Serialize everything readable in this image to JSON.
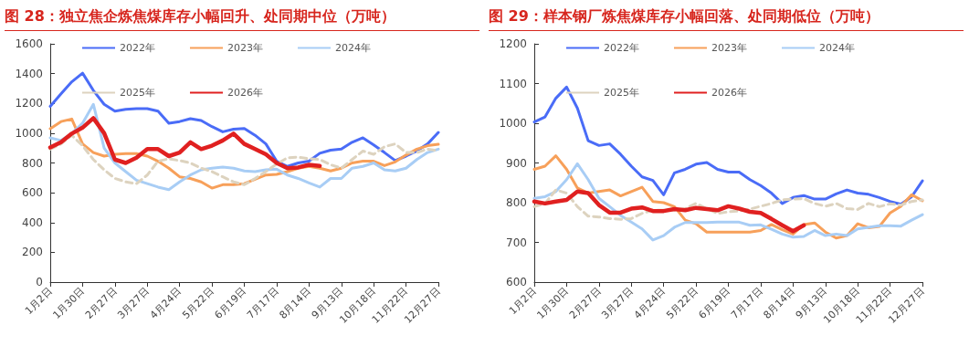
{
  "chart_data": [
    {
      "type": "line",
      "title": "图 28：独立焦企炼焦煤库存小幅回升、处同期中位（万吨）",
      "categories": [
        "1月2日",
        null,
        null,
        "1月30日",
        null,
        null,
        "2月27日",
        null,
        null,
        "3月27日",
        null,
        null,
        "4月24日",
        null,
        null,
        "5月22日",
        null,
        null,
        "6月19日",
        null,
        null,
        "7月17日",
        null,
        null,
        "8月14日",
        null,
        null,
        "9月13日",
        null,
        null,
        "10月18日",
        null,
        null,
        "11月22日",
        null,
        null,
        "12月27日"
      ],
      "ylim": [
        0,
        1600
      ],
      "yticks": [
        0,
        200,
        400,
        600,
        800,
        1000,
        1200,
        1400,
        1600
      ],
      "grid": false,
      "legend": "top",
      "marker": "none",
      "series": [
        {
          "name": "2022年",
          "color": "#4a6cf7",
          "values": [
            1180,
            1264,
            1345,
            1403,
            1287,
            1194,
            1148,
            1160,
            1164,
            1165,
            1148,
            1067,
            1078,
            1097,
            1085,
            1044,
            1009,
            1027,
            1032,
            986,
            928,
            812,
            777,
            800,
            812,
            865,
            886,
            893,
            939,
            969,
            921,
            870,
            816,
            846,
            881,
            928,
            1005
          ]
        },
        {
          "name": "2023年",
          "color": "#f7a05a",
          "values": [
            1030,
            1078,
            1095,
            928,
            870,
            846,
            858,
            863,
            863,
            846,
            812,
            765,
            707,
            696,
            673,
            631,
            654,
            654,
            661,
            691,
            719,
            723,
            742,
            765,
            777,
            765,
            746,
            765,
            800,
            812,
            812,
            782,
            807,
            853,
            893,
            916,
            925
          ]
        },
        {
          "name": "2024年",
          "color": "#a8cdf5",
          "values": [
            969,
            951,
            997,
            1067,
            1194,
            900,
            800,
            742,
            684,
            661,
            638,
            621,
            673,
            719,
            754,
            765,
            772,
            765,
            746,
            742,
            754,
            758,
            719,
            696,
            666,
            638,
            696,
            696,
            765,
            777,
            800,
            754,
            746,
            765,
            823,
            870,
            893
          ]
        },
        {
          "name": "2025年",
          "color": "#ddd3bf",
          "line_style": "dashed",
          "values": [
            893,
            928,
            986,
            916,
            823,
            754,
            696,
            673,
            661,
            719,
            812,
            828,
            816,
            800,
            765,
            742,
            707,
            673,
            654,
            696,
            742,
            793,
            835,
            839,
            828,
            823,
            788,
            765,
            823,
            880,
            858,
            909,
            928,
            870,
            870,
            893,
            881
          ]
        },
        {
          "name": "2026年",
          "color": "#e02020",
          "values": [
            904,
            939,
            997,
            1037,
            1101,
            1000,
            823,
            800,
            835,
            893,
            893,
            846,
            870,
            939,
            893,
            916,
            951,
            997,
            928,
            893,
            858,
            800,
            765,
            770,
            788,
            780,
            null,
            null,
            null,
            null,
            null,
            null,
            null,
            null,
            null,
            null,
            null
          ]
        }
      ]
    },
    {
      "type": "line",
      "title": "图 29：样本钢厂炼焦煤库存小幅回落、处同期低位（万吨）",
      "categories": [
        "1月2日",
        null,
        null,
        "1月30日",
        null,
        null,
        "2月27日",
        null,
        null,
        "3月27日",
        null,
        null,
        "4月24日",
        null,
        null,
        "5月22日",
        null,
        null,
        "6月19日",
        null,
        null,
        "7月17日",
        null,
        null,
        "8月14日",
        null,
        null,
        "9月13日",
        null,
        null,
        "10月18日",
        null,
        null,
        "11月22日",
        null,
        null,
        "12月27日"
      ],
      "ylim": [
        600,
        1200
      ],
      "yticks": [
        600,
        700,
        800,
        900,
        1000,
        1100,
        1200
      ],
      "grid": false,
      "legend": "top",
      "marker": "none",
      "series": [
        {
          "name": "2022年",
          "color": "#4a6cf7",
          "values": [
            1003,
            1016,
            1063,
            1091,
            1038,
            956,
            944,
            948,
            922,
            892,
            865,
            856,
            820,
            875,
            884,
            897,
            901,
            884,
            877,
            877,
            858,
            843,
            824,
            798,
            813,
            818,
            809,
            809,
            822,
            832,
            824,
            821,
            813,
            803,
            796,
            815,
            855
          ]
        },
        {
          "name": "2023年",
          "color": "#f7a05a",
          "values": [
            884,
            892,
            918,
            884,
            837,
            824,
            828,
            832,
            817,
            828,
            839,
            803,
            800,
            790,
            756,
            747,
            726,
            726,
            726,
            726,
            726,
            730,
            745,
            732,
            721,
            745,
            749,
            726,
            711,
            717,
            747,
            737,
            740,
            774,
            791,
            820,
            805
          ]
        },
        {
          "name": "2024年",
          "color": "#a8cdf5",
          "values": [
            811,
            815,
            828,
            858,
            898,
            858,
            811,
            790,
            768,
            751,
            734,
            706,
            717,
            738,
            750,
            750,
            750,
            751,
            751,
            751,
            743,
            744,
            733,
            721,
            713,
            715,
            730,
            717,
            721,
            717,
            734,
            738,
            742,
            742,
            741,
            756,
            770
          ]
        },
        {
          "name": "2025年",
          "color": "#ddd3bf",
          "line_style": "dashed",
          "values": [
            790,
            798,
            832,
            824,
            790,
            766,
            764,
            760,
            758,
            760,
            773,
            781,
            781,
            781,
            785,
            798,
            785,
            773,
            777,
            779,
            784,
            791,
            798,
            807,
            809,
            810,
            798,
            791,
            798,
            785,
            783,
            798,
            790,
            797,
            794,
            803,
            807
          ]
        },
        {
          "name": "2026年",
          "color": "#e02020",
          "values": [
            803,
            798,
            803,
            807,
            828,
            824,
            794,
            775,
            775,
            785,
            788,
            779,
            779,
            784,
            781,
            787,
            784,
            781,
            791,
            785,
            777,
            774,
            759,
            743,
            728,
            743,
            null,
            null,
            null,
            null,
            null,
            null,
            null,
            null,
            null,
            null,
            null
          ]
        }
      ]
    }
  ]
}
